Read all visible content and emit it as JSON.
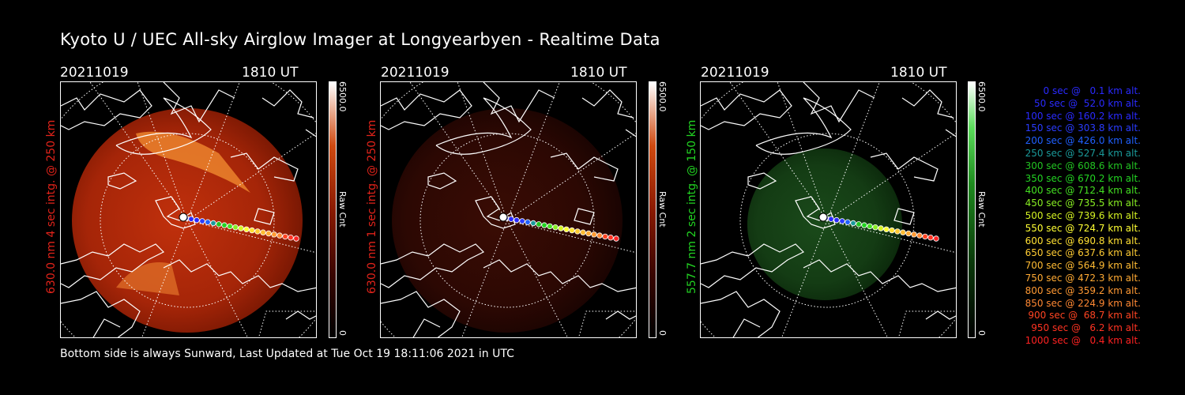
{
  "title": "Kyoto U / UEC All-sky Airglow Imager at Longyearbyen - Realtime Data",
  "panels": [
    {
      "date": "20211019",
      "time": "1810 UT",
      "side_label": "630.0 nm 4 sec intg. @ 250 km",
      "label_color": "#e2231a",
      "cbar_max": "6500.0",
      "cbar_min": "0",
      "cbar_label": "Raw Cnt",
      "theme": "red-bright"
    },
    {
      "date": "20211019",
      "time": "1810 UT",
      "side_label": "630.0 nm 1 sec intg. @ 250 km",
      "label_color": "#e2231a",
      "cbar_max": "6500.0",
      "cbar_min": "0",
      "cbar_label": "Raw Cnt",
      "theme": "red-dim"
    },
    {
      "date": "20211019",
      "time": "1810 UT",
      "side_label": "557.7 nm 2 sec intg. @ 150 km",
      "label_color": "#22d422",
      "cbar_max": "6500.0",
      "cbar_min": "0",
      "cbar_label": "Raw Cnt",
      "theme": "green"
    }
  ],
  "footer": "Bottom side is always Sunward, Last Updated at Tue Oct 19 18:11:06 2021 in UTC",
  "legend": [
    {
      "text": "0 sec @   0.1 km alt.",
      "color": "#2a2aff"
    },
    {
      "text": "50 sec @  52.0 km alt.",
      "color": "#2a2aff"
    },
    {
      "text": "100 sec @ 160.2 km alt.",
      "color": "#2a2aff"
    },
    {
      "text": "150 sec @ 303.8 km alt.",
      "color": "#2a3cff"
    },
    {
      "text": "200 sec @ 426.0 km alt.",
      "color": "#2060ff"
    },
    {
      "text": "250 sec @ 527.4 km alt.",
      "color": "#1a9a9a"
    },
    {
      "text": "300 sec @ 608.6 km alt.",
      "color": "#22c422"
    },
    {
      "text": "350 sec @ 670.2 km alt.",
      "color": "#22d422"
    },
    {
      "text": "400 sec @ 712.4 km alt.",
      "color": "#44e022"
    },
    {
      "text": "450 sec @ 735.5 km alt.",
      "color": "#88ee22"
    },
    {
      "text": "500 sec @ 739.6 km alt.",
      "color": "#d4f222"
    },
    {
      "text": "550 sec @ 724.7 km alt.",
      "color": "#ffff33"
    },
    {
      "text": "600 sec @ 690.8 km alt.",
      "color": "#ffe033"
    },
    {
      "text": "650 sec @ 637.6 km alt.",
      "color": "#ffcc33"
    },
    {
      "text": "700 sec @ 564.9 km alt.",
      "color": "#ffbb33"
    },
    {
      "text": "750 sec @ 472.3 km alt.",
      "color": "#ffaa33"
    },
    {
      "text": "800 sec @ 359.2 km alt.",
      "color": "#ff9933"
    },
    {
      "text": "850 sec @ 224.9 km alt.",
      "color": "#ff8833"
    },
    {
      "text": "900 sec @  68.7 km alt.",
      "color": "#ff4422"
    },
    {
      "text": "950 sec @   6.2 km alt.",
      "color": "#ff3322"
    },
    {
      "text": "1000 sec @   0.4 km alt.",
      "color": "#ff2222"
    }
  ]
}
